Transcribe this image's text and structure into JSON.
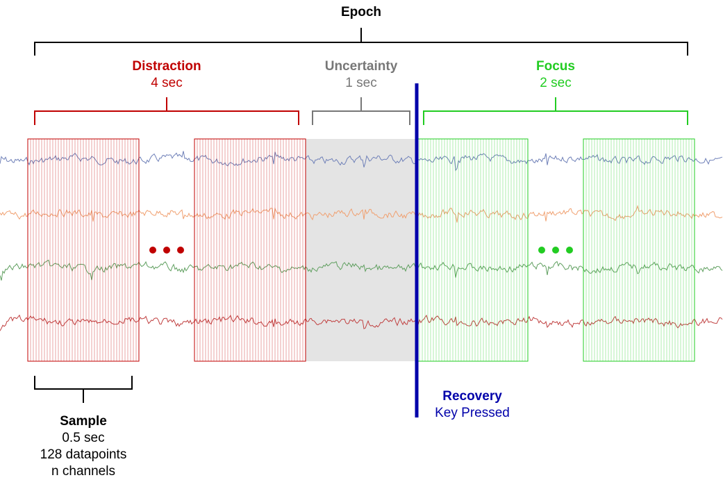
{
  "epoch": {
    "label": "Epoch"
  },
  "phases": {
    "distraction": {
      "label": "Distraction",
      "duration": "4 sec",
      "color": "#c00000"
    },
    "uncertainty": {
      "label": "Uncertainty",
      "duration": "1 sec",
      "color": "#777777"
    },
    "focus": {
      "label": "Focus",
      "duration": "2 sec",
      "color": "#22cc22"
    }
  },
  "recovery": {
    "label": "Recovery",
    "sublabel": "Key Pressed",
    "color": "#0000aa"
  },
  "sample": {
    "label": "Sample",
    "duration": "0.5 sec",
    "datapoints": "128 datapoints",
    "channels": "n channels"
  },
  "channels": [
    {
      "color": "#6f80b8"
    },
    {
      "color": "#f0a070"
    },
    {
      "color": "#5f9f5f"
    },
    {
      "color": "#c04040"
    }
  ],
  "uncertainty_region_color": "#e4e4e4"
}
